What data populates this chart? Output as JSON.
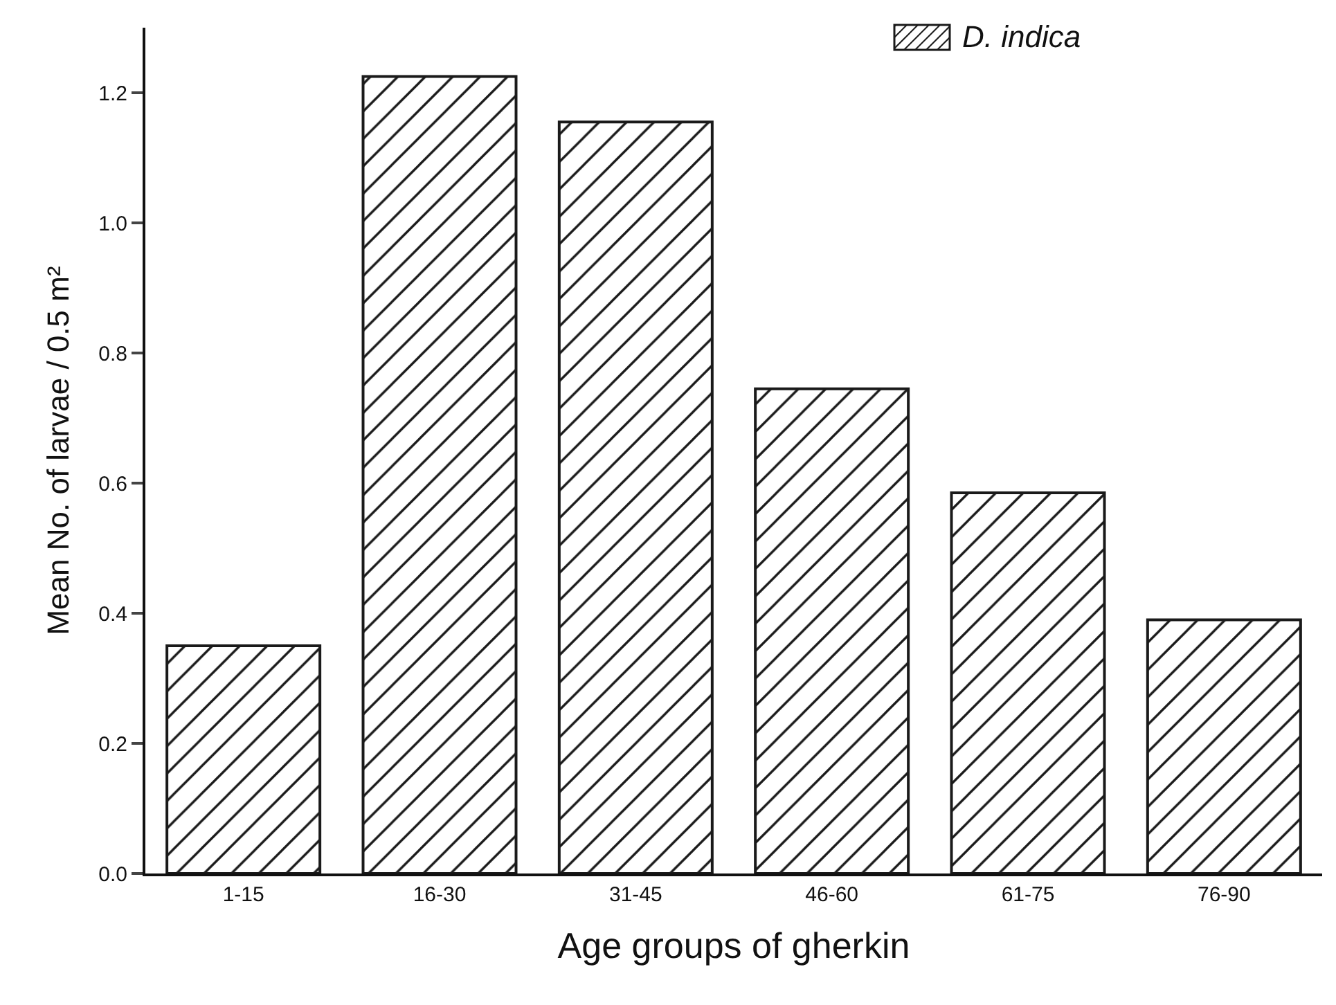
{
  "chart_data": {
    "type": "bar",
    "xlabel": "Age groups of gherkin",
    "ylabel": "Mean No. of larvae / 0.5 m²",
    "categories": [
      "1-15",
      "16-30",
      "31-45",
      "46-60",
      "61-75",
      "76-90"
    ],
    "series": [
      {
        "name": "D. indica",
        "color": "#1a1a1a",
        "values": [
          0.35,
          1.225,
          1.155,
          0.745,
          0.585,
          0.39
        ]
      }
    ],
    "ylim": [
      0,
      1.3
    ],
    "yticks": [
      {
        "value": 0,
        "label": "0.0"
      },
      0.2,
      0.4,
      0.6,
      0.8,
      {
        "value": 1,
        "label": "1.0"
      },
      1.2
    ],
    "grid": false,
    "legend": "top right"
  }
}
